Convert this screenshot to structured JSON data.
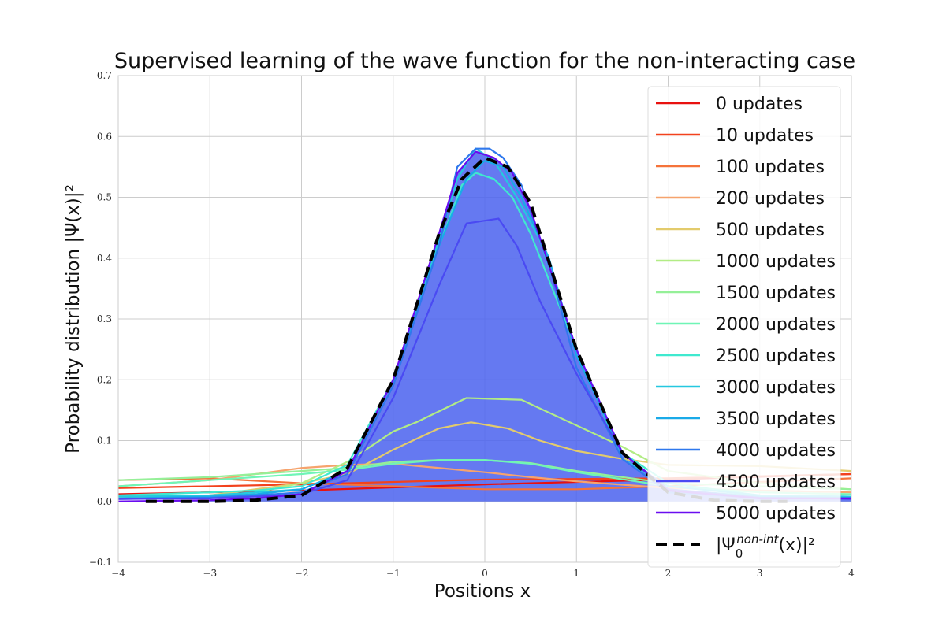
{
  "chart_data": {
    "type": "line",
    "title": "Supervised learning of the wave function for the non-interacting case",
    "xlabel": "Positions x",
    "ylabel": "Probability distribution |Ψ(x)|²",
    "xlim": [
      -4,
      4
    ],
    "ylim": [
      -0.1,
      0.7
    ],
    "xticks": [
      -4,
      -3,
      -2,
      -1,
      0,
      1,
      2,
      3,
      4
    ],
    "yticks": [
      -0.1,
      0.0,
      0.1,
      0.2,
      0.3,
      0.4,
      0.5,
      0.6,
      0.7
    ],
    "xtick_labels": [
      "−4",
      "−3",
      "−2",
      "−1",
      "0",
      "1",
      "2",
      "3",
      "4"
    ],
    "ytick_labels": [
      "−0.1",
      "0.0",
      "0.1",
      "0.2",
      "0.3",
      "0.4",
      "0.5",
      "0.6",
      "0.7"
    ],
    "grid": true,
    "legend_position": "right",
    "fill_color": "#4a62ee",
    "series": [
      {
        "name": "0 updates",
        "color": "#e8110f",
        "x": [
          -4,
          -2,
          0,
          2,
          4
        ],
        "y": [
          0.012,
          0.018,
          0.028,
          0.036,
          0.045
        ]
      },
      {
        "name": "10 updates",
        "color": "#f2421d",
        "x": [
          -4,
          -2,
          0,
          2,
          4
        ],
        "y": [
          0.022,
          0.028,
          0.036,
          0.038,
          0.045
        ]
      },
      {
        "name": "100 updates",
        "color": "#f5733a",
        "x": [
          -4,
          -3,
          -2,
          -1,
          0,
          1,
          2,
          3,
          4
        ],
        "y": [
          0.035,
          0.038,
          0.03,
          0.025,
          0.02,
          0.02,
          0.025,
          0.032,
          0.038
        ]
      },
      {
        "name": "200 updates",
        "color": "#f6a36d",
        "x": [
          -4,
          -3,
          -2,
          -1.5,
          -1,
          -0.5,
          0,
          0.5,
          1,
          2,
          3,
          4
        ],
        "y": [
          0.025,
          0.035,
          0.055,
          0.06,
          0.062,
          0.055,
          0.048,
          0.04,
          0.033,
          0.022,
          0.018,
          0.015
        ]
      },
      {
        "name": "500 updates",
        "color": "#e3cb6c",
        "x": [
          -4,
          -3,
          -2,
          -1.5,
          -1,
          -0.5,
          -0.15,
          0.25,
          0.6,
          1,
          1.5,
          2,
          3,
          4
        ],
        "y": [
          0.008,
          0.01,
          0.03,
          0.045,
          0.085,
          0.12,
          0.13,
          0.12,
          0.1,
          0.083,
          0.07,
          0.06,
          0.058,
          0.05
        ]
      },
      {
        "name": "1000 updates",
        "color": "#b2ec85",
        "x": [
          -4,
          -3,
          -2.5,
          -2,
          -1.5,
          -1,
          -0.75,
          -0.2,
          0.4,
          1,
          1.5,
          2,
          3,
          4
        ],
        "y": [
          0.005,
          0.005,
          0.015,
          0.03,
          0.065,
          0.115,
          0.13,
          0.17,
          0.167,
          0.125,
          0.09,
          0.05,
          0.03,
          0.02
        ]
      },
      {
        "name": "1500 updates",
        "color": "#95f098",
        "x": [
          -4,
          -3,
          -2,
          -1.5,
          -1,
          -0.5,
          0,
          0.5,
          1,
          2,
          3,
          4
        ],
        "y": [
          0.035,
          0.04,
          0.05,
          0.055,
          0.065,
          0.068,
          0.068,
          0.063,
          0.05,
          0.03,
          0.025,
          0.02
        ]
      },
      {
        "name": "2000 updates",
        "color": "#6ff5b6",
        "x": [
          -4,
          -3,
          -2,
          -1.5,
          -1,
          -0.5,
          0,
          0.5,
          1,
          2,
          3,
          4
        ],
        "y": [
          0.025,
          0.035,
          0.045,
          0.052,
          0.062,
          0.068,
          0.068,
          0.062,
          0.048,
          0.025,
          0.015,
          0.012
        ]
      },
      {
        "name": "2500 updates",
        "color": "#3fe9cf",
        "x": [
          -4,
          -3,
          -2.5,
          -2,
          -1.5,
          -1,
          -0.5,
          -0.25,
          -0.1,
          0.1,
          0.3,
          0.5,
          1,
          1.5,
          2,
          3,
          4
        ],
        "y": [
          0.01,
          0.015,
          0.018,
          0.025,
          0.06,
          0.2,
          0.42,
          0.52,
          0.54,
          0.53,
          0.5,
          0.44,
          0.25,
          0.08,
          0.03,
          0.01,
          0.008
        ]
      },
      {
        "name": "3000 updates",
        "color": "#25c8e0",
        "x": [
          -4,
          -3,
          -2.5,
          -2,
          -1.5,
          -1,
          -0.5,
          -0.3,
          -0.1,
          0.1,
          0.35,
          0.6,
          1,
          1.5,
          2,
          3,
          4
        ],
        "y": [
          0.008,
          0.01,
          0.015,
          0.02,
          0.05,
          0.2,
          0.43,
          0.53,
          0.58,
          0.56,
          0.5,
          0.43,
          0.25,
          0.07,
          0.025,
          0.01,
          0.008
        ]
      },
      {
        "name": "3500 updates",
        "color": "#1aaae8",
        "x": [
          -4,
          -3,
          -2.5,
          -2,
          -1.5,
          -1,
          -0.5,
          -0.2,
          0,
          0.2,
          0.4,
          0.7,
          1,
          1.5,
          2,
          3,
          4
        ],
        "y": [
          0.005,
          0.008,
          0.012,
          0.02,
          0.05,
          0.2,
          0.42,
          0.53,
          0.56,
          0.55,
          0.5,
          0.4,
          0.24,
          0.08,
          0.02,
          0.008,
          0.006
        ]
      },
      {
        "name": "4000 updates",
        "color": "#2f78ed",
        "x": [
          -4,
          -3,
          -2.5,
          -2,
          -1.5,
          -1,
          -0.5,
          -0.3,
          -0.1,
          0.05,
          0.2,
          0.4,
          0.7,
          1,
          1.5,
          2,
          3,
          4
        ],
        "y": [
          0.004,
          0.006,
          0.01,
          0.015,
          0.045,
          0.19,
          0.42,
          0.55,
          0.58,
          0.58,
          0.565,
          0.52,
          0.39,
          0.22,
          0.07,
          0.015,
          0.006,
          0.005
        ]
      },
      {
        "name": "4500 updates",
        "color": "#4a4af2",
        "x": [
          -4,
          -3,
          -2.5,
          -2,
          -1.5,
          -1,
          -0.5,
          -0.2,
          0.15,
          0.35,
          0.6,
          1,
          1.5,
          2,
          3,
          4
        ],
        "y": [
          0.004,
          0.005,
          0.008,
          0.012,
          0.035,
          0.17,
          0.355,
          0.457,
          0.465,
          0.42,
          0.33,
          0.21,
          0.08,
          0.02,
          0.006,
          0.004
        ]
      },
      {
        "name": "5000 updates",
        "color": "#6a0df0",
        "x": [
          -4,
          -3,
          -2.5,
          -2,
          -1.5,
          -1,
          -0.5,
          -0.3,
          -0.1,
          0.1,
          0.3,
          0.5,
          1,
          1.5,
          2,
          3,
          4
        ],
        "y": [
          0.0,
          0.002,
          0.005,
          0.012,
          0.05,
          0.2,
          0.44,
          0.54,
          0.575,
          0.565,
          0.54,
          0.48,
          0.25,
          0.08,
          0.018,
          0.005,
          0.005
        ]
      },
      {
        "name": "|Ψ₀^{non-int}(x)|²",
        "color": "#000000",
        "dashed": true,
        "x": [
          -3.7,
          -3,
          -2.5,
          -2,
          -1.5,
          -1,
          -0.5,
          -0.25,
          0,
          0.25,
          0.5,
          1,
          1.5,
          2,
          2.5,
          3,
          3.3
        ],
        "y": [
          0.0,
          0.0,
          0.002,
          0.01,
          0.055,
          0.2,
          0.44,
          0.53,
          0.565,
          0.55,
          0.49,
          0.25,
          0.08,
          0.015,
          0.002,
          0.0,
          0.0
        ]
      }
    ]
  }
}
